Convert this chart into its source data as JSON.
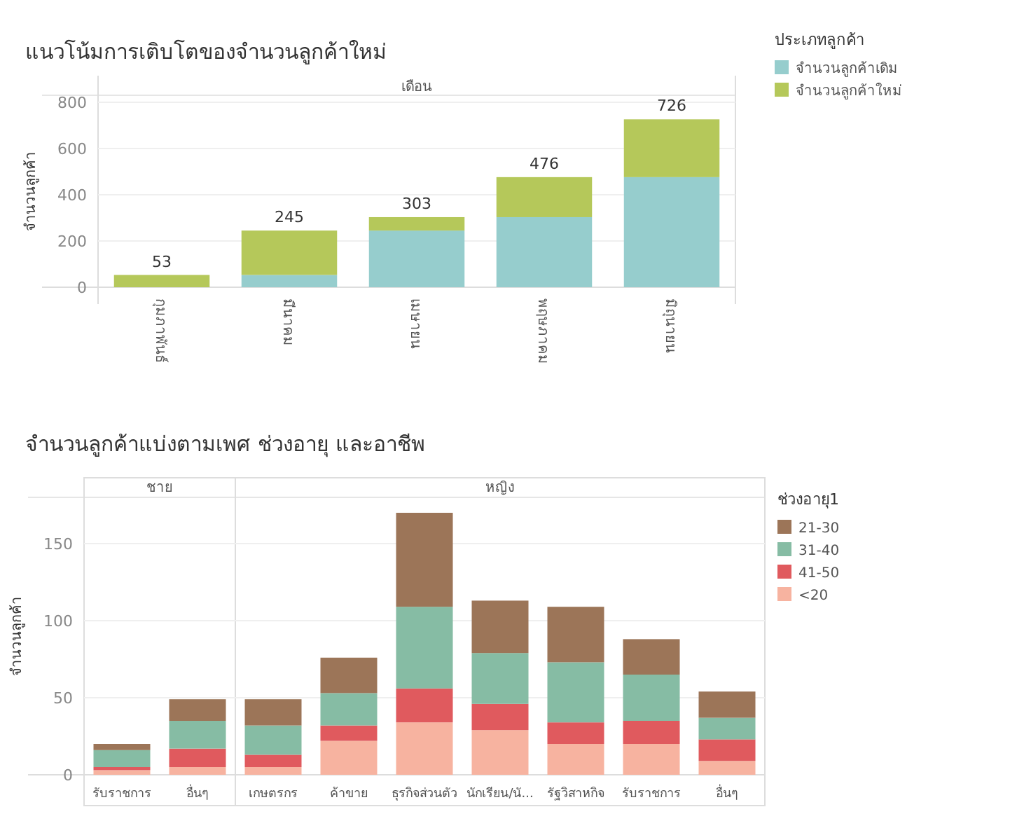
{
  "chart_data": [
    {
      "type": "bar",
      "stacked": true,
      "title": "แนวโน้มการเติบโตของจำนวนลูกค้าใหม่",
      "xlabel": "เดือน",
      "ylabel": "จำนวนลูกค้า",
      "legend_title": "ประเภทลูกค้า",
      "categories": [
        "กุมภาพันธ์",
        "มีนาคม",
        "เมษายน",
        "พฤษภาคม",
        "มิถุนายน"
      ],
      "series": [
        {
          "name": "จำนวนลูกค้าเดิม",
          "color": "#96cdcd",
          "values": [
            0,
            53,
            245,
            303,
            476
          ]
        },
        {
          "name": "จำนวนลูกค้าใหม่",
          "color": "#b5c85a",
          "values": [
            53,
            192,
            58,
            173,
            250
          ]
        }
      ],
      "totals": [
        "53",
        "245",
        "303",
        "476",
        "726"
      ],
      "ylim": [
        0,
        830
      ],
      "yticks": [
        0,
        200,
        400,
        600,
        800
      ],
      "grid": "y",
      "legend": "top right"
    },
    {
      "type": "bar",
      "stacked": true,
      "title": "จำนวนลูกค้าแบ่งตามเพศ ช่วงอายุ และอาชีพ",
      "ylabel": "จำนวนลูกค้า",
      "legend_title": "ช่วงอายุ1",
      "categories": [
        "รับราชการ",
        "อื่นๆ",
        "เกษตรกร",
        "ค้าขาย",
        "ธุรกิจส่วนตัว",
        "นักเรียน/นั...",
        "รัฐวิสาหกิจ",
        "รับราชการ",
        "อื่นๆ"
      ],
      "series": [
        {
          "name": "<20",
          "color": "#f7b3a0",
          "values": [
            3,
            5,
            5,
            22,
            34,
            29,
            20,
            20,
            9
          ]
        },
        {
          "name": "41-50",
          "color": "#e05a5e",
          "values": [
            2,
            12,
            8,
            10,
            22,
            17,
            14,
            15,
            14
          ]
        },
        {
          "name": "31-40",
          "color": "#86bca4",
          "values": [
            11,
            18,
            19,
            21,
            53,
            33,
            39,
            30,
            14
          ]
        },
        {
          "name": "21-30",
          "color": "#9c7558",
          "values": [
            4,
            14,
            17,
            23,
            61,
            34,
            36,
            23,
            17
          ]
        }
      ],
      "annotations": [
        "ชาย",
        "หญิง"
      ],
      "ylim": [
        0,
        180
      ],
      "yticks": [
        0,
        50,
        100,
        150
      ],
      "grid": "y",
      "legend": "top right"
    }
  ]
}
